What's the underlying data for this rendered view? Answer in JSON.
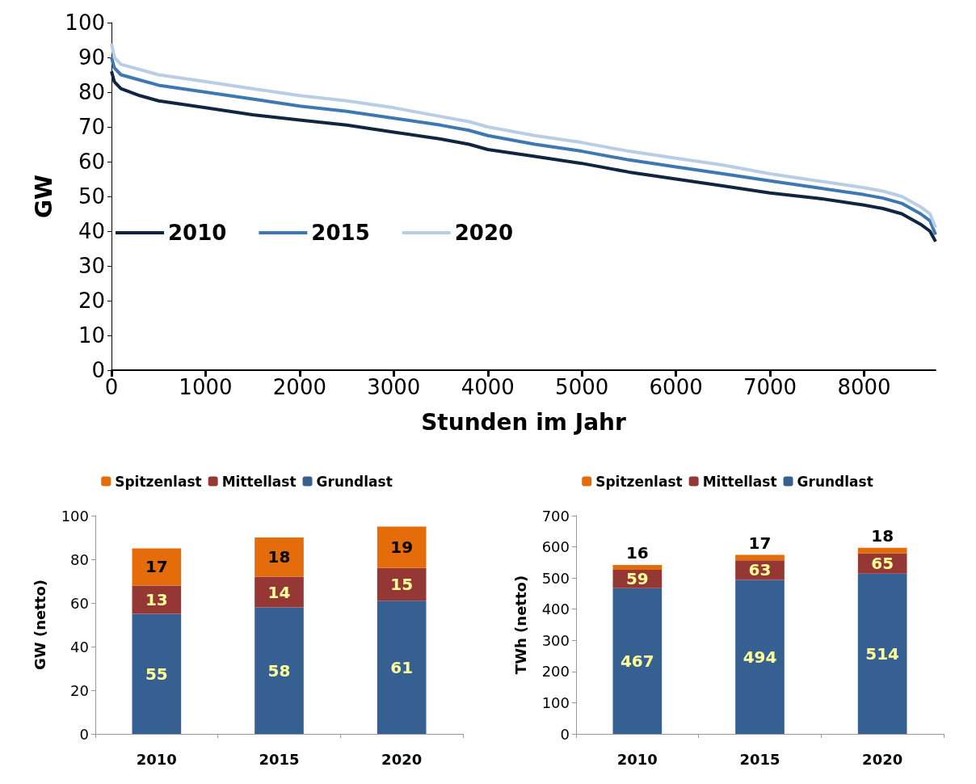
{
  "chart_data": [
    {
      "type": "line",
      "xlabel": "Stunden im Jahr",
      "ylabel": "GW",
      "xlim": [
        0,
        8760
      ],
      "xticks": [
        0,
        1000,
        2000,
        3000,
        4000,
        5000,
        6000,
        7000,
        8000
      ],
      "ylim": [
        0,
        100
      ],
      "yticks": [
        0,
        10,
        20,
        30,
        40,
        50,
        60,
        70,
        80,
        90,
        100
      ],
      "grid": false,
      "legend": "left",
      "marker": "none",
      "line_style": "solid",
      "series": [
        {
          "name": "2010",
          "color": "#10253f",
          "x": [
            0,
            30,
            100,
            300,
            500,
            1000,
            1500,
            2000,
            2500,
            3000,
            3500,
            3800,
            4000,
            4500,
            5000,
            5500,
            6000,
            6500,
            7000,
            7500,
            8000,
            8200,
            8400,
            8500,
            8600,
            8700,
            8760
          ],
          "values": [
            86,
            83,
            81,
            79,
            77.5,
            75.5,
            73.5,
            72,
            70.5,
            68.5,
            66.5,
            65,
            63.5,
            61.5,
            59.5,
            57,
            55,
            53,
            51,
            49.5,
            47.5,
            46.5,
            45,
            43.5,
            42,
            40,
            37
          ]
        },
        {
          "name": "2015",
          "color": "#3e78b0",
          "x": [
            0,
            30,
            100,
            300,
            500,
            1000,
            1500,
            2000,
            2500,
            3000,
            3500,
            3800,
            4000,
            4500,
            5000,
            5500,
            6000,
            6500,
            7000,
            7500,
            8000,
            8200,
            8400,
            8500,
            8600,
            8700,
            8760
          ],
          "values": [
            90,
            87,
            85,
            83.5,
            82,
            80,
            78,
            76,
            74.5,
            72.5,
            70.5,
            69,
            67.5,
            65,
            63,
            60.5,
            58.5,
            56.5,
            54.5,
            52.5,
            50.5,
            49.5,
            48,
            46.5,
            45,
            43,
            39
          ]
        },
        {
          "name": "2020",
          "color": "#b9cde5",
          "x": [
            0,
            30,
            100,
            300,
            500,
            1000,
            1500,
            2000,
            2500,
            3000,
            3500,
            3800,
            4000,
            4500,
            5000,
            5500,
            6000,
            6500,
            7000,
            7500,
            8000,
            8200,
            8400,
            8500,
            8600,
            8700,
            8760
          ],
          "values": [
            94,
            90,
            88,
            86.5,
            85,
            83,
            81,
            79,
            77.5,
            75.5,
            73,
            71.5,
            70,
            67.5,
            65.5,
            63,
            61,
            59,
            56.5,
            54.5,
            52.5,
            51.5,
            50,
            48.5,
            47,
            45,
            41
          ]
        }
      ]
    },
    {
      "type": "bar",
      "stacked": true,
      "ylabel": "GW (netto)",
      "categories": [
        "2010",
        "2015",
        "2020"
      ],
      "ylim": [
        0,
        100
      ],
      "yticks": [
        0,
        20,
        40,
        60,
        80,
        100
      ],
      "grid": false,
      "legend": "top",
      "data_labels": true,
      "series": [
        {
          "name": "Grundlast",
          "color": "#376092",
          "values": [
            55,
            58,
            61
          ]
        },
        {
          "name": "Mittellast",
          "color": "#953735",
          "values": [
            13,
            14,
            15
          ]
        },
        {
          "name": "Spitzenlast",
          "color": "#e46c0a",
          "values": [
            17,
            18,
            19
          ]
        }
      ]
    },
    {
      "type": "bar",
      "stacked": true,
      "ylabel": "TWh (netto)",
      "categories": [
        "2010",
        "2015",
        "2020"
      ],
      "ylim": [
        0,
        700
      ],
      "yticks": [
        0,
        100,
        200,
        300,
        400,
        500,
        600,
        700
      ],
      "grid": false,
      "legend": "top",
      "data_labels": true,
      "series": [
        {
          "name": "Grundlast",
          "color": "#376092",
          "values": [
            467,
            494,
            514
          ]
        },
        {
          "name": "Mittellast",
          "color": "#953735",
          "values": [
            59,
            63,
            65
          ]
        },
        {
          "name": "Spitzenlast",
          "color": "#e46c0a",
          "values": [
            16,
            17,
            18
          ]
        }
      ]
    }
  ]
}
